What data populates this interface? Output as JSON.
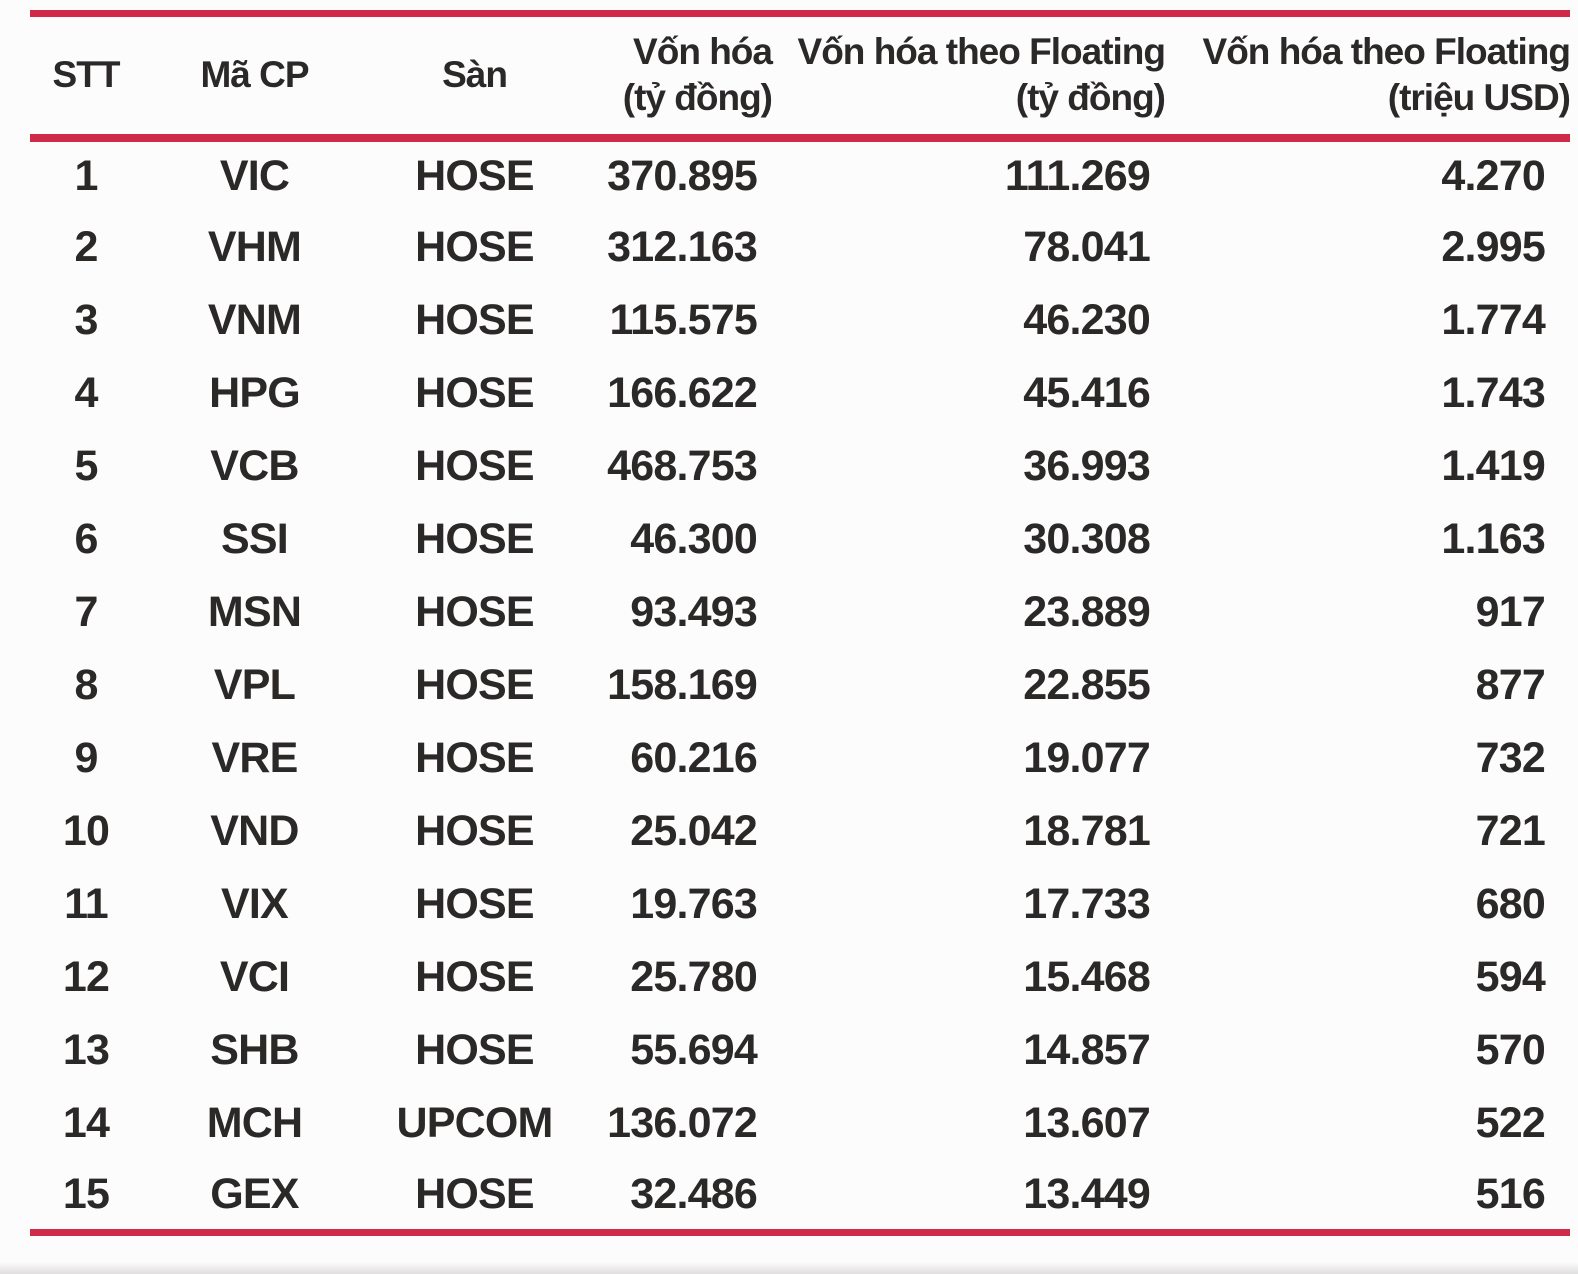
{
  "colors": {
    "rule_red": "#cf2b48",
    "text": "#2b2828",
    "background": "#fdfcfc"
  },
  "chart_data": {
    "type": "table",
    "columns": [
      {
        "key": "stt",
        "line1": "STT",
        "line2": ""
      },
      {
        "key": "ma-cp",
        "line1": "Mã CP",
        "line2": ""
      },
      {
        "key": "san",
        "line1": "Sàn",
        "line2": ""
      },
      {
        "key": "von-hoa",
        "line1": "Vốn hóa",
        "line2": "(tỷ đồng)"
      },
      {
        "key": "von-hoa-floating-vnd",
        "line1": "Vốn hóa theo Floating",
        "line2": "(tỷ đồng)"
      },
      {
        "key": "von-hoa-floating-usd",
        "line1": "Vốn hóa theo Floating",
        "line2": "(triệu USD)"
      }
    ],
    "rows": [
      [
        "1",
        "VIC",
        "HOSE",
        "370.895",
        "111.269",
        "4.270"
      ],
      [
        "2",
        "VHM",
        "HOSE",
        "312.163",
        "78.041",
        "2.995"
      ],
      [
        "3",
        "VNM",
        "HOSE",
        "115.575",
        "46.230",
        "1.774"
      ],
      [
        "4",
        "HPG",
        "HOSE",
        "166.622",
        "45.416",
        "1.743"
      ],
      [
        "5",
        "VCB",
        "HOSE",
        "468.753",
        "36.993",
        "1.419"
      ],
      [
        "6",
        "SSI",
        "HOSE",
        "46.300",
        "30.308",
        "1.163"
      ],
      [
        "7",
        "MSN",
        "HOSE",
        "93.493",
        "23.889",
        "917"
      ],
      [
        "8",
        "VPL",
        "HOSE",
        "158.169",
        "22.855",
        "877"
      ],
      [
        "9",
        "VRE",
        "HOSE",
        "60.216",
        "19.077",
        "732"
      ],
      [
        "10",
        "VND",
        "HOSE",
        "25.042",
        "18.781",
        "721"
      ],
      [
        "11",
        "VIX",
        "HOSE",
        "19.763",
        "17.733",
        "680"
      ],
      [
        "12",
        "VCI",
        "HOSE",
        "25.780",
        "15.468",
        "594"
      ],
      [
        "13",
        "SHB",
        "HOSE",
        "55.694",
        "14.857",
        "570"
      ],
      [
        "14",
        "MCH",
        "UPCOM",
        "136.072",
        "13.607",
        "522"
      ],
      [
        "15",
        "GEX",
        "HOSE",
        "32.486",
        "13.449",
        "516"
      ]
    ]
  }
}
